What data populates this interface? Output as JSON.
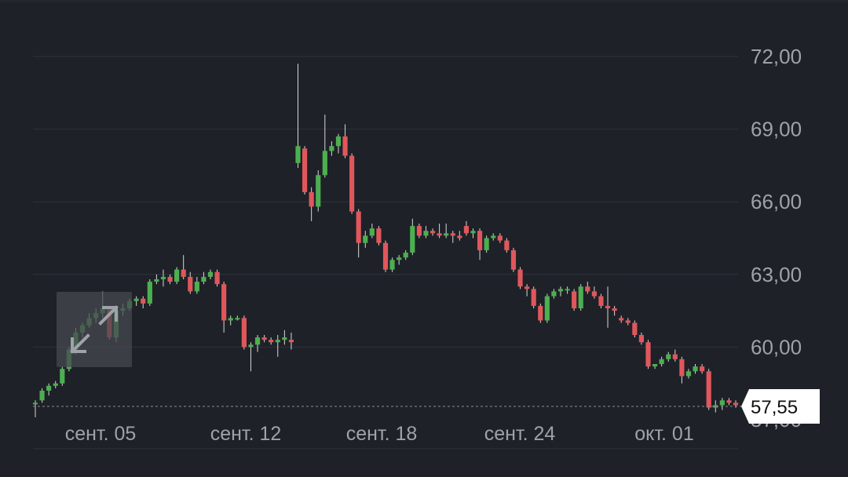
{
  "chart_data": {
    "type": "candlestick",
    "y_ticks": [
      "72,00",
      "69,00",
      "66,00",
      "63,00",
      "60,00",
      "57,00"
    ],
    "y_tick_values": [
      72,
      69,
      66,
      63,
      60,
      57
    ],
    "ylim": [
      56.5,
      73.2
    ],
    "x_labels": [
      "сент. 05",
      "сент. 12",
      "сент. 18",
      "сент. 24",
      "окт. 01"
    ],
    "grid": true,
    "current_price": 57.55,
    "current_price_label": "57,55",
    "colors": {
      "up": "#4caf50",
      "down": "#e0575b",
      "background": "#1e2127",
      "grid": "#2f333b",
      "text": "#9ea2a9"
    },
    "candles": [
      [
        57.7,
        57.8,
        57.1,
        57.7
      ],
      [
        57.8,
        58.3,
        57.7,
        58.2
      ],
      [
        58.2,
        58.5,
        58.0,
        58.4
      ],
      [
        58.4,
        58.6,
        58.3,
        58.5
      ],
      [
        58.5,
        59.2,
        58.4,
        59.1
      ],
      [
        59.1,
        60.0,
        59.0,
        59.9
      ],
      [
        59.9,
        60.8,
        59.7,
        60.6
      ],
      [
        60.6,
        61.0,
        60.4,
        60.9
      ],
      [
        60.9,
        61.4,
        60.8,
        61.2
      ],
      [
        61.2,
        61.6,
        61.0,
        61.4
      ],
      [
        61.4,
        62.3,
        61.2,
        61.6
      ],
      [
        61.6,
        61.7,
        60.3,
        60.4
      ],
      [
        60.4,
        61.7,
        60.2,
        61.5
      ],
      [
        61.5,
        61.8,
        61.3,
        61.6
      ],
      [
        61.6,
        62.0,
        61.5,
        61.9
      ],
      [
        61.9,
        62.1,
        61.7,
        62.0
      ],
      [
        62.0,
        62.1,
        61.6,
        61.8
      ],
      [
        61.8,
        62.8,
        61.7,
        62.7
      ],
      [
        62.7,
        63.0,
        62.6,
        62.8
      ],
      [
        62.8,
        63.2,
        62.5,
        62.9
      ],
      [
        62.9,
        63.0,
        62.6,
        62.7
      ],
      [
        62.7,
        63.3,
        62.6,
        63.2
      ],
      [
        63.2,
        63.8,
        62.8,
        62.9
      ],
      [
        62.9,
        63.1,
        62.2,
        62.3
      ],
      [
        62.3,
        62.9,
        62.2,
        62.7
      ],
      [
        62.7,
        63.1,
        62.6,
        62.9
      ],
      [
        62.9,
        63.2,
        62.8,
        63.1
      ],
      [
        63.1,
        63.2,
        62.5,
        62.6
      ],
      [
        62.6,
        62.7,
        60.6,
        61.1
      ],
      [
        61.1,
        61.3,
        60.9,
        61.2
      ],
      [
        61.2,
        61.3,
        61.1,
        61.2
      ],
      [
        61.2,
        61.3,
        59.9,
        60.0
      ],
      [
        60.0,
        60.2,
        59.0,
        60.1
      ],
      [
        60.1,
        60.5,
        59.8,
        60.4
      ],
      [
        60.4,
        60.5,
        60.2,
        60.3
      ],
      [
        60.3,
        60.4,
        60.1,
        60.2
      ],
      [
        60.2,
        60.5,
        59.6,
        60.3
      ],
      [
        60.3,
        60.7,
        60.1,
        60.4
      ],
      [
        60.3,
        60.6,
        59.9,
        60.2
      ],
      [
        67.6,
        71.7,
        67.4,
        68.3
      ],
      [
        68.2,
        68.3,
        66.3,
        66.4
      ],
      [
        66.4,
        66.6,
        65.2,
        65.8
      ],
      [
        65.8,
        67.3,
        65.6,
        67.1
      ],
      [
        67.1,
        69.6,
        67.0,
        68.1
      ],
      [
        68.1,
        68.5,
        67.9,
        68.3
      ],
      [
        68.3,
        68.8,
        68.0,
        68.7
      ],
      [
        68.7,
        69.2,
        67.8,
        67.9
      ],
      [
        67.9,
        68.0,
        65.5,
        65.6
      ],
      [
        65.6,
        65.7,
        63.7,
        64.3
      ],
      [
        64.3,
        64.8,
        64.1,
        64.6
      ],
      [
        64.6,
        65.1,
        64.5,
        64.9
      ],
      [
        64.9,
        65.0,
        64.2,
        64.3
      ],
      [
        64.3,
        64.4,
        63.1,
        63.2
      ],
      [
        63.2,
        63.7,
        63.1,
        63.6
      ],
      [
        63.6,
        63.8,
        63.4,
        63.7
      ],
      [
        63.7,
        64.0,
        63.6,
        63.9
      ],
      [
        63.9,
        65.3,
        63.8,
        65.0
      ],
      [
        65.0,
        65.1,
        64.5,
        64.6
      ],
      [
        64.6,
        65.0,
        64.5,
        64.8
      ],
      [
        64.8,
        64.9,
        64.6,
        64.7
      ],
      [
        64.7,
        65.1,
        64.5,
        64.6
      ],
      [
        64.6,
        65.1,
        64.5,
        64.7
      ],
      [
        64.7,
        64.8,
        64.3,
        64.6
      ],
      [
        64.6,
        64.8,
        64.4,
        64.5
      ],
      [
        65.0,
        65.2,
        64.6,
        64.7
      ],
      [
        64.7,
        64.9,
        64.5,
        64.8
      ],
      [
        64.8,
        64.9,
        63.6,
        64.0
      ],
      [
        64.0,
        64.6,
        63.9,
        64.5
      ],
      [
        64.5,
        64.7,
        64.4,
        64.6
      ],
      [
        64.6,
        64.7,
        64.3,
        64.4
      ],
      [
        64.4,
        64.5,
        63.9,
        64.0
      ],
      [
        64.0,
        64.1,
        63.1,
        63.2
      ],
      [
        63.2,
        63.3,
        62.4,
        62.5
      ],
      [
        62.5,
        62.6,
        62.1,
        62.4
      ],
      [
        62.4,
        62.5,
        61.6,
        61.7
      ],
      [
        61.7,
        61.8,
        61.0,
        61.1
      ],
      [
        61.1,
        62.2,
        61.0,
        62.1
      ],
      [
        62.1,
        62.4,
        62.0,
        62.3
      ],
      [
        62.3,
        62.5,
        62.1,
        62.4
      ],
      [
        62.4,
        62.5,
        62.2,
        62.4
      ],
      [
        62.3,
        62.4,
        61.5,
        61.6
      ],
      [
        61.6,
        62.6,
        61.5,
        62.5
      ],
      [
        62.5,
        62.7,
        62.2,
        62.3
      ],
      [
        62.3,
        62.5,
        62.0,
        62.1
      ],
      [
        62.1,
        62.2,
        61.6,
        61.7
      ],
      [
        61.7,
        62.5,
        60.8,
        61.6
      ],
      [
        61.6,
        61.7,
        61.3,
        61.5
      ],
      [
        61.2,
        61.3,
        61.0,
        61.1
      ],
      [
        61.1,
        61.2,
        60.9,
        61.0
      ],
      [
        61.0,
        61.1,
        60.4,
        60.5
      ],
      [
        60.5,
        60.6,
        60.1,
        60.2
      ],
      [
        60.2,
        60.3,
        59.1,
        59.2
      ],
      [
        59.2,
        59.3,
        59.1,
        59.3
      ],
      [
        59.3,
        59.6,
        59.2,
        59.5
      ],
      [
        59.5,
        59.8,
        59.4,
        59.7
      ],
      [
        59.7,
        59.9,
        59.4,
        59.5
      ],
      [
        59.5,
        59.6,
        58.5,
        58.8
      ],
      [
        58.8,
        59.1,
        58.7,
        59.0
      ],
      [
        59.0,
        59.3,
        58.9,
        59.2
      ],
      [
        59.2,
        59.3,
        58.9,
        59.0
      ],
      [
        59.0,
        59.1,
        57.4,
        57.5
      ],
      [
        57.5,
        57.8,
        57.3,
        57.6
      ],
      [
        57.6,
        57.9,
        57.4,
        57.8
      ],
      [
        57.8,
        57.9,
        57.6,
        57.7
      ],
      [
        57.7,
        57.8,
        57.5,
        57.6
      ]
    ]
  }
}
